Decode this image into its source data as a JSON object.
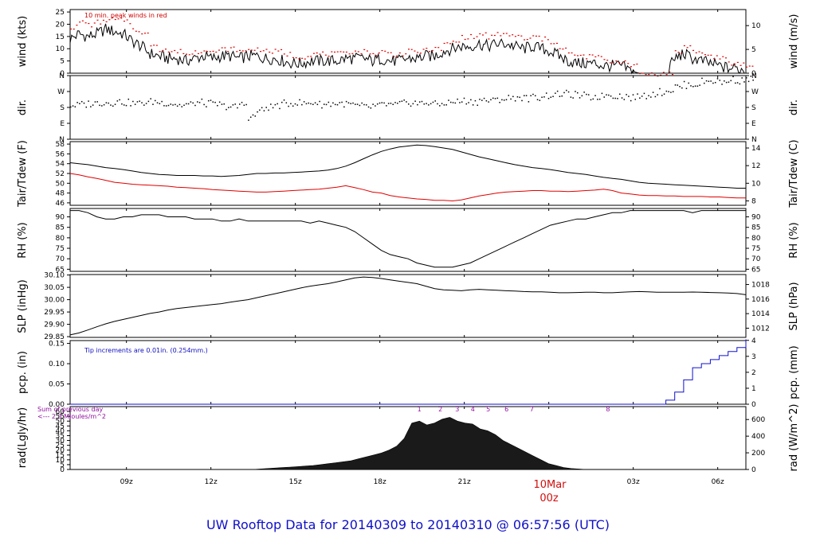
{
  "title": "UW Rooftop Data for 20140309  to  20140310 @ 06:57:56  (UTC)",
  "chart_data": [
    {
      "id": "wind",
      "type": "line",
      "ylabel": "wind (kts)",
      "ylabel_right": "wind (m/s)",
      "ylim": [
        0,
        26
      ],
      "yticks": [
        0,
        5,
        10,
        15,
        20,
        25
      ],
      "right_ticks": [
        0,
        5,
        10
      ],
      "right_factor": 1.944,
      "annotation": "10 min. peak winds in red",
      "series": [
        {
          "values": [
            14,
            16,
            15,
            16,
            18,
            17,
            16,
            13,
            11,
            8,
            7,
            6,
            6,
            5,
            6,
            7,
            6,
            7,
            7,
            6,
            7,
            7,
            6,
            6,
            5,
            4,
            4,
            5,
            5,
            5,
            5,
            6,
            6,
            6,
            5,
            6,
            5,
            5,
            6,
            6,
            7,
            7,
            9,
            10,
            11,
            11,
            12,
            11,
            12,
            12,
            11,
            10,
            11,
            10,
            9,
            7,
            5,
            4,
            4,
            4,
            3,
            3,
            3,
            1,
            0,
            0,
            0,
            0,
            6,
            8,
            6,
            5,
            4,
            3,
            2,
            2,
            1
          ],
          "color": "#000000"
        },
        {
          "values": [
            19,
            21,
            20,
            21,
            22,
            22,
            21,
            18,
            16,
            12,
            10,
            9,
            9,
            8,
            9,
            10,
            9,
            10,
            10,
            9,
            10,
            10,
            9,
            9,
            8,
            7,
            7,
            8,
            8,
            8,
            8,
            9,
            9,
            9,
            8,
            9,
            8,
            8,
            9,
            9,
            10,
            10,
            12,
            13,
            15,
            15,
            16,
            15,
            16,
            16,
            15,
            14,
            15,
            14,
            13,
            10,
            8,
            7,
            7,
            7,
            5,
            5,
            5,
            3,
            0,
            0,
            0,
            0,
            9,
            11,
            9,
            8,
            7,
            6,
            4,
            4,
            3
          ],
          "color": "#e00000"
        }
      ]
    },
    {
      "id": "dir",
      "type": "scatter",
      "ylabel": "dir.",
      "ylim": [
        0,
        360
      ],
      "ytick_values": [
        0,
        90,
        180,
        270,
        360
      ],
      "ytick_labels": [
        "N",
        "E",
        "S",
        "W",
        "N"
      ],
      "series": [
        {
          "values": [
            195,
            200,
            205,
            210,
            210,
            215,
            210,
            205,
            210,
            215,
            210,
            205,
            195,
            200,
            210,
            205,
            200,
            190,
            185,
            200,
            130,
            165,
            185,
            195,
            205,
            210,
            205,
            210,
            200,
            205,
            205,
            200,
            190,
            185,
            190,
            200,
            195,
            205,
            210,
            205,
            210,
            200,
            210,
            215,
            220,
            215,
            225,
            220,
            230,
            235,
            240,
            235,
            240,
            250,
            255,
            260,
            255,
            250,
            240,
            245,
            255,
            250,
            245,
            240,
            250,
            260,
            270,
            280,
            300,
            310,
            315,
            330,
            335,
            325,
            340,
            335,
            345
          ],
          "color": "#000000"
        }
      ]
    },
    {
      "id": "temp",
      "type": "line",
      "ylabel": "Tair/Tdew (F)",
      "ylabel_right": "Tair/Tdew (C)",
      "ylim": [
        45.5,
        58.5
      ],
      "yticks": [
        46,
        48,
        50,
        52,
        54,
        56,
        58
      ],
      "right_ticks": [
        8,
        10,
        12,
        14
      ],
      "right_mode": "c2f",
      "series": [
        {
          "values": [
            54.2,
            54.0,
            53.8,
            53.5,
            53.2,
            53.0,
            52.8,
            52.5,
            52.2,
            52.0,
            51.8,
            51.7,
            51.6,
            51.6,
            51.6,
            51.5,
            51.5,
            51.4,
            51.5,
            51.6,
            51.8,
            52.0,
            52.0,
            52.1,
            52.1,
            52.2,
            52.3,
            52.4,
            52.5,
            52.7,
            53.0,
            53.5,
            54.2,
            55.0,
            55.8,
            56.5,
            57.0,
            57.4,
            57.6,
            57.8,
            57.7,
            57.5,
            57.2,
            56.9,
            56.4,
            55.9,
            55.4,
            55.0,
            54.6,
            54.2,
            53.8,
            53.5,
            53.2,
            53.0,
            52.8,
            52.5,
            52.2,
            52.0,
            51.8,
            51.5,
            51.2,
            51.0,
            50.8,
            50.5,
            50.2,
            50.0,
            49.9,
            49.8,
            49.7,
            49.6,
            49.5,
            49.4,
            49.3,
            49.2,
            49.1,
            49.0,
            49.0
          ],
          "color": "#000000"
        },
        {
          "values": [
            52.0,
            51.7,
            51.3,
            51.0,
            50.6,
            50.2,
            50.0,
            49.8,
            49.7,
            49.6,
            49.5,
            49.4,
            49.2,
            49.1,
            49.0,
            48.9,
            48.7,
            48.6,
            48.5,
            48.4,
            48.3,
            48.2,
            48.2,
            48.3,
            48.4,
            48.5,
            48.6,
            48.7,
            48.8,
            49.0,
            49.2,
            49.5,
            49.1,
            48.7,
            48.2,
            48.0,
            47.5,
            47.2,
            47.0,
            46.8,
            46.7,
            46.5,
            46.5,
            46.4,
            46.6,
            47.0,
            47.4,
            47.7,
            48.0,
            48.2,
            48.3,
            48.4,
            48.5,
            48.5,
            48.4,
            48.4,
            48.3,
            48.4,
            48.5,
            48.6,
            48.8,
            48.5,
            48.0,
            47.8,
            47.6,
            47.5,
            47.5,
            47.4,
            47.4,
            47.3,
            47.3,
            47.3,
            47.2,
            47.2,
            47.1,
            47.0,
            47.0
          ],
          "color": "#e00000"
        }
      ]
    },
    {
      "id": "rh",
      "type": "line",
      "ylabel": "RH (%)",
      "ylabel_right": "RH (%)",
      "ylim": [
        64,
        94
      ],
      "yticks": [
        65,
        70,
        75,
        80,
        85,
        90
      ],
      "right_ticks": [
        65,
        70,
        75,
        80,
        85,
        90
      ],
      "right_factor": 1,
      "series": [
        {
          "values": [
            93,
            93,
            92,
            90,
            89,
            89,
            90,
            90,
            91,
            91,
            91,
            90,
            90,
            90,
            89,
            89,
            89,
            88,
            88,
            89,
            88,
            88,
            88,
            88,
            88,
            88,
            88,
            87,
            88,
            87,
            86,
            85,
            83,
            80,
            77,
            74,
            72,
            71,
            70,
            68,
            67,
            66,
            66,
            66,
            67,
            68,
            70,
            72,
            74,
            76,
            78,
            80,
            82,
            84,
            86,
            87,
            88,
            89,
            89,
            90,
            91,
            92,
            92,
            93,
            93,
            93,
            93,
            93,
            93,
            93,
            92,
            93,
            93,
            93,
            93,
            93,
            93
          ],
          "color": "#000000"
        }
      ]
    },
    {
      "id": "slp",
      "type": "line",
      "ylabel": "SLP (inHg)",
      "ylabel_right": "SLP (hPa)",
      "ylim": [
        29.847,
        30.102
      ],
      "yticks": [
        29.85,
        29.9,
        29.95,
        30.0,
        30.05,
        30.1
      ],
      "right_ticks": [
        1012,
        1014,
        1016,
        1018
      ],
      "right_mode": "hpa",
      "series": [
        {
          "values": [
            29.857,
            29.865,
            29.877,
            29.89,
            29.902,
            29.912,
            29.92,
            29.928,
            29.936,
            29.944,
            29.95,
            29.958,
            29.964,
            29.968,
            29.972,
            29.976,
            29.98,
            29.984,
            29.99,
            29.995,
            30.0,
            30.008,
            30.016,
            30.024,
            30.032,
            30.04,
            30.048,
            30.055,
            30.06,
            30.065,
            30.072,
            30.08,
            30.088,
            30.092,
            30.09,
            30.086,
            30.08,
            30.075,
            30.07,
            30.065,
            30.055,
            30.045,
            30.04,
            30.038,
            30.036,
            30.04,
            30.042,
            30.04,
            30.038,
            30.036,
            30.035,
            30.033,
            30.032,
            30.032,
            30.03,
            30.028,
            30.028,
            30.029,
            30.03,
            30.03,
            30.028,
            30.028,
            30.03,
            30.032,
            30.033,
            30.032,
            30.03,
            30.03,
            30.03,
            30.03,
            30.031,
            30.03,
            30.029,
            30.028,
            30.027,
            30.025,
            30.02
          ],
          "color": "#000000"
        }
      ]
    },
    {
      "id": "pcp",
      "type": "line",
      "ylabel": "pcp. (in)",
      "ylabel_right": "pcp. (mm)",
      "ylim": [
        0,
        0.157
      ],
      "yticks": [
        0.0,
        0.05,
        0.1,
        0.15
      ],
      "right_ticks": [
        0,
        1,
        2,
        3,
        4
      ],
      "right_factor": 0.03937,
      "annotation": "Tip increments are 0.01in. (0.254mm.)",
      "series": [
        {
          "values": [
            0,
            0,
            0,
            0,
            0,
            0,
            0,
            0,
            0,
            0,
            0,
            0,
            0,
            0,
            0,
            0,
            0,
            0,
            0,
            0,
            0,
            0,
            0,
            0,
            0,
            0,
            0,
            0,
            0,
            0,
            0,
            0,
            0,
            0,
            0,
            0,
            0,
            0,
            0,
            0,
            0,
            0,
            0,
            0,
            0,
            0,
            0,
            0,
            0,
            0,
            0,
            0,
            0,
            0,
            0,
            0,
            0,
            0,
            0,
            0,
            0,
            0,
            0,
            0,
            0,
            0,
            0,
            0.01,
            0.03,
            0.06,
            0.09,
            0.1,
            0.11,
            0.12,
            0.13,
            0.14,
            0.16
          ],
          "color": "#1010d0"
        }
      ]
    },
    {
      "id": "rad",
      "type": "area",
      "ylabel": "rad(Lgly/hr)",
      "ylabel_right": "rad (W/m^2)",
      "ylim": [
        0,
        65
      ],
      "yticks": [
        0,
        5,
        10,
        15,
        20,
        25,
        30,
        35,
        40,
        45,
        50,
        55,
        60
      ],
      "right_ticks": [
        0,
        200,
        400,
        600
      ],
      "right_factor": 0.0861,
      "annotation_lines": [
        "Sum of previous day",
        "<--- 2.3 MJoules/m^2"
      ],
      "markers": [
        {
          "label": "1",
          "x": 19.4
        },
        {
          "label": "2",
          "x": 20.15
        },
        {
          "label": "3",
          "x": 20.75
        },
        {
          "label": "4",
          "x": 21.3
        },
        {
          "label": "5",
          "x": 21.85
        },
        {
          "label": "6",
          "x": 22.5
        },
        {
          "label": "7",
          "x": 23.4
        },
        {
          "label": "8",
          "x": 26.1
        }
      ],
      "series": [
        {
          "values": [
            0,
            0,
            0,
            0,
            0,
            0,
            0,
            0,
            0,
            0,
            0,
            0,
            0,
            0,
            0,
            0,
            0,
            0,
            0,
            0,
            0,
            0,
            0,
            0,
            0,
            0.5,
            1,
            1.5,
            2,
            2.5,
            3,
            3.5,
            4,
            5,
            6,
            7,
            8,
            9,
            11,
            13,
            15,
            17,
            20,
            24,
            32,
            48,
            50,
            46,
            48,
            52,
            54,
            50,
            48,
            47,
            42,
            40,
            36,
            30,
            26,
            22,
            18,
            14,
            10,
            6,
            4,
            2,
            1,
            0.5,
            0,
            0,
            0,
            0,
            0,
            0,
            0,
            0,
            0,
            0,
            0,
            0,
            0,
            0,
            0,
            0,
            0,
            0,
            0,
            0,
            0,
            0
          ],
          "color": "#000000"
        }
      ]
    }
  ],
  "x_axis": {
    "range": [
      7,
      31.0
    ],
    "ticks": [
      {
        "x": 9,
        "label": "09z"
      },
      {
        "x": 12,
        "label": "12z"
      },
      {
        "x": 15,
        "label": "15z"
      },
      {
        "x": 18,
        "label": "18z"
      },
      {
        "x": 21,
        "label": "21z"
      },
      {
        "x": 24,
        "label": ""
      },
      {
        "x": 27,
        "label": "03z"
      },
      {
        "x": 30,
        "label": "06z"
      }
    ],
    "date_label": "10Mar",
    "date_sub": "00z"
  }
}
